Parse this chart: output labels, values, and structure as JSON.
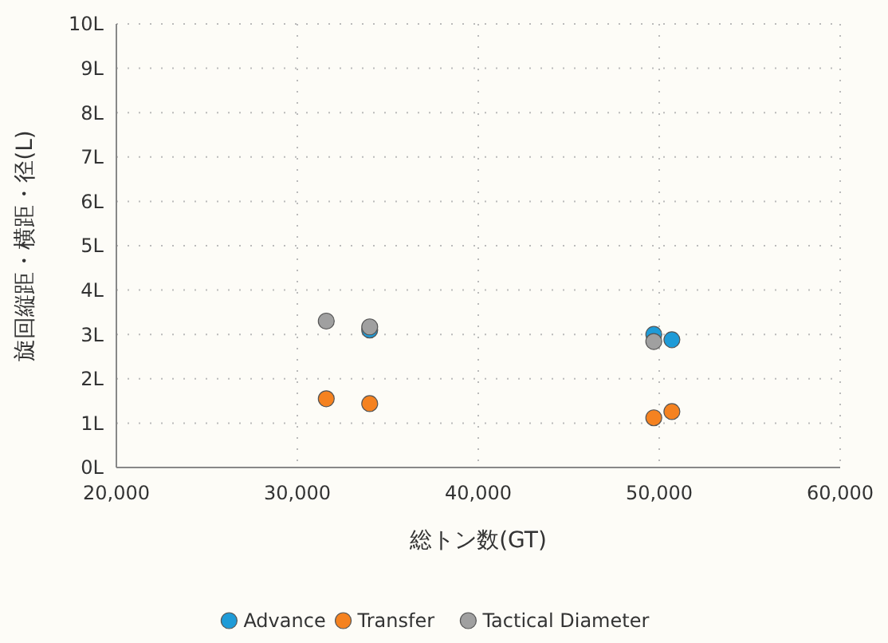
{
  "chart_data": {
    "type": "scatter",
    "xlabel": "総トン数(GT)",
    "ylabel": "旋回縦距・横距・径(L)",
    "xlim": [
      20000,
      60000
    ],
    "xticks": [
      {
        "value": 20000,
        "label": "20,000"
      },
      {
        "value": 30000,
        "label": "30,000"
      },
      {
        "value": 40000,
        "label": "40,000"
      },
      {
        "value": 50000,
        "label": "50,000"
      },
      {
        "value": 60000,
        "label": "60,000"
      }
    ],
    "ylim": [
      0,
      10
    ],
    "yticks": [
      {
        "value": 0,
        "label": "0L"
      },
      {
        "value": 1,
        "label": "1L"
      },
      {
        "value": 2,
        "label": "2L"
      },
      {
        "value": 3,
        "label": "3L"
      },
      {
        "value": 4,
        "label": "4L"
      },
      {
        "value": 5,
        "label": "5L"
      },
      {
        "value": 6,
        "label": "6L"
      },
      {
        "value": 7,
        "label": "7L"
      },
      {
        "value": 8,
        "label": "8L"
      },
      {
        "value": 9,
        "label": "9L"
      },
      {
        "value": 10,
        "label": "10L"
      }
    ],
    "grid": true,
    "legend": "bottom",
    "marker": "circle",
    "series": [
      {
        "name": "Advance",
        "color": "#1f9bd7",
        "x": [
          34000,
          49700,
          50700
        ],
        "values": [
          3.1,
          3.0,
          2.88
        ]
      },
      {
        "name": "Transfer",
        "color": "#f58220",
        "x": [
          31600,
          34000,
          49700,
          50700
        ],
        "values": [
          1.55,
          1.44,
          1.12,
          1.26
        ]
      },
      {
        "name": "Tactical Diameter",
        "color": "#a0a0a0",
        "x": [
          31600,
          34000,
          49700
        ],
        "values": [
          3.3,
          3.17,
          2.84
        ]
      }
    ]
  }
}
